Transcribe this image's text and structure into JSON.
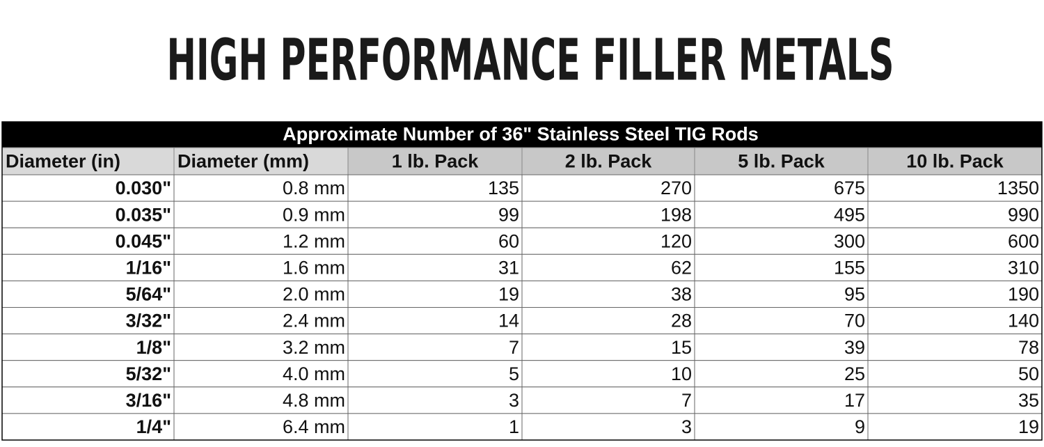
{
  "header": {
    "title": "HIGH PERFORMANCE FILLER METALS"
  },
  "table": {
    "caption": "Approximate Number of 36\" Stainless Steel TIG Rods",
    "columns": [
      "Diameter (in)",
      "Diameter (mm)",
      "1 lb. Pack",
      "2 lb. Pack",
      "5 lb. Pack",
      "10 lb. Pack"
    ],
    "rows": [
      [
        "0.030\"",
        "0.8 mm",
        135,
        270,
        675,
        1350
      ],
      [
        "0.035\"",
        "0.9 mm",
        99,
        198,
        495,
        990
      ],
      [
        "0.045\"",
        "1.2 mm",
        60,
        120,
        300,
        600
      ],
      [
        "1/16\"",
        "1.6 mm",
        31,
        62,
        155,
        310
      ],
      [
        "5/64\"",
        "2.0 mm",
        19,
        38,
        95,
        190
      ],
      [
        "3/32\"",
        "2.4 mm",
        14,
        28,
        70,
        140
      ],
      [
        "1/8\"",
        "3.2 mm",
        7,
        15,
        39,
        78
      ],
      [
        "5/32\"",
        "4.0 mm",
        5,
        10,
        25,
        50
      ],
      [
        "3/16\"",
        "4.8 mm",
        3,
        7,
        17,
        35
      ],
      [
        "1/4\"",
        "6.4 mm",
        1,
        3,
        9,
        19
      ]
    ]
  }
}
